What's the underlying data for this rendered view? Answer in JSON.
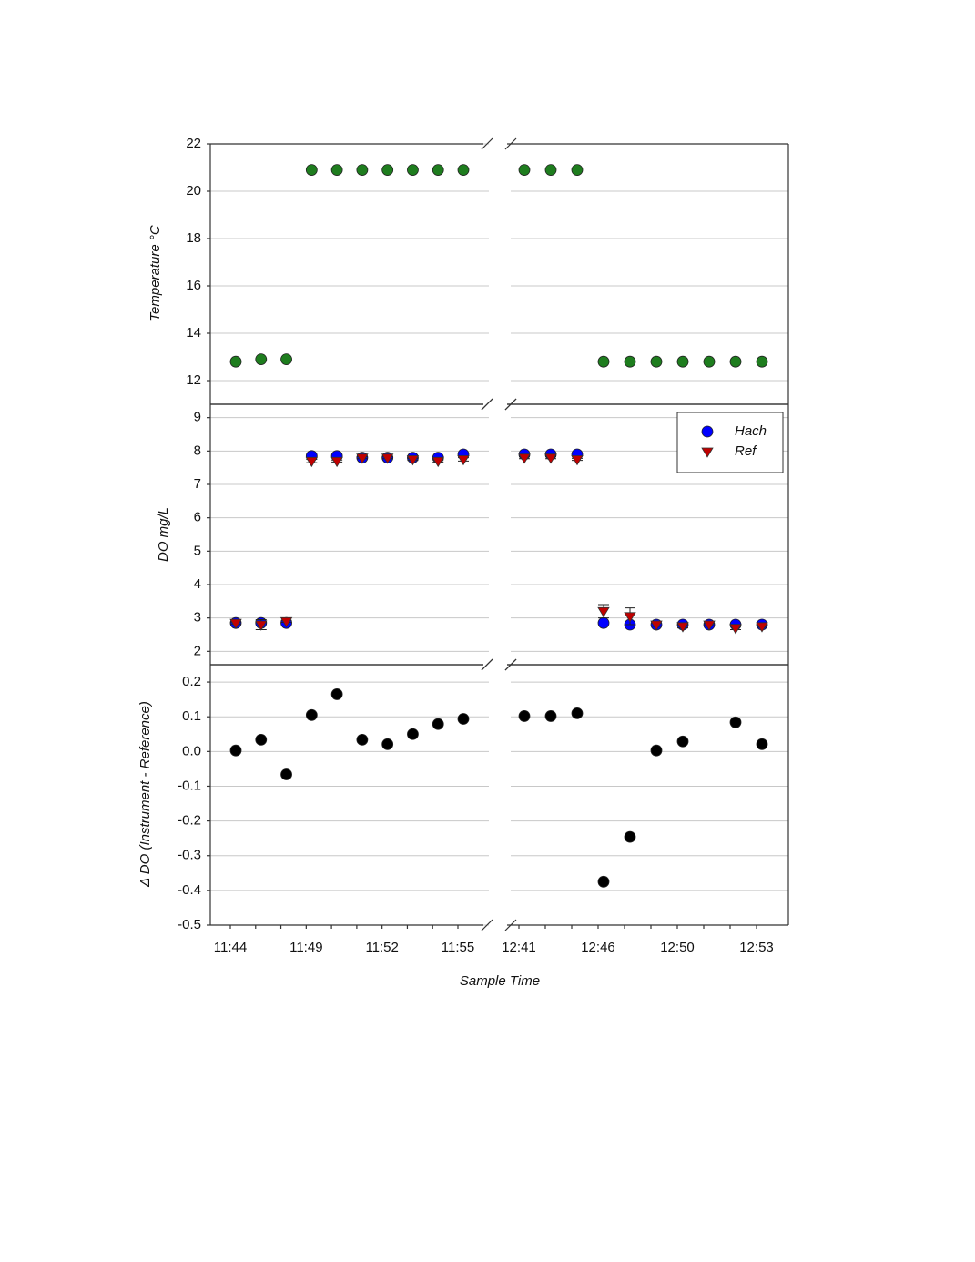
{
  "chart_data": [
    {
      "type": "scatter",
      "y_label": "Temperature °C",
      "categories": [
        "11:44",
        null,
        null,
        "11:49",
        null,
        null,
        "11:52",
        null,
        null,
        "11:55",
        "12:41",
        null,
        null,
        "12:46",
        null,
        null,
        "12:50",
        null,
        null,
        "12:53"
      ],
      "axis_break": true,
      "series": [
        {
          "name": "Temperature",
          "color": "#1e7d1e",
          "marker": "circle",
          "values": [
            12.8,
            12.9,
            12.9,
            20.9,
            20.9,
            20.9,
            20.9,
            20.9,
            20.9,
            20.9,
            20.9,
            20.9,
            20.9,
            12.8,
            12.8,
            12.8,
            12.8,
            12.8,
            12.8,
            12.8
          ]
        }
      ],
      "ylim": [
        11,
        22
      ],
      "yticks": [
        12,
        14,
        16,
        18,
        20,
        22
      ],
      "grid": true
    },
    {
      "type": "scatter",
      "y_label": "DO mg/L",
      "categories": [
        "11:44",
        null,
        null,
        "11:49",
        null,
        null,
        "11:52",
        null,
        null,
        "11:55",
        "12:41",
        null,
        null,
        "12:46",
        null,
        null,
        "12:50",
        null,
        null,
        "12:53"
      ],
      "axis_break": true,
      "series": [
        {
          "name": "Hach",
          "color": "#0000ff",
          "marker": "circle",
          "values": [
            2.85,
            2.85,
            2.85,
            7.85,
            7.85,
            7.8,
            7.8,
            7.8,
            7.8,
            7.9,
            7.9,
            7.9,
            7.9,
            2.85,
            2.8,
            2.8,
            2.8,
            2.8,
            2.8,
            2.8
          ]
        },
        {
          "name": "Ref",
          "color": "#c00000",
          "marker": "triangle-down",
          "values": [
            2.85,
            2.8,
            2.9,
            7.7,
            7.7,
            7.8,
            7.8,
            7.75,
            7.7,
            7.75,
            7.8,
            7.8,
            7.75,
            3.2,
            3.05,
            2.8,
            2.75,
            2.8,
            2.7,
            2.75
          ],
          "errors": [
            0.03,
            0.15,
            0.03,
            0.05,
            0.03,
            0.03,
            0.03,
            0.03,
            0.03,
            0.05,
            0.03,
            0.03,
            0.03,
            0.2,
            0.25,
            0.05,
            0.05,
            0.03,
            0.05,
            0.03
          ]
        }
      ],
      "legend": "upper right",
      "ylim": [
        1.6,
        9.4
      ],
      "yticks": [
        2,
        3,
        4,
        5,
        6,
        7,
        8,
        9
      ],
      "grid": true
    },
    {
      "type": "scatter",
      "y_label": "Δ DO (Instrument - Reference)",
      "x_label": "Sample Time",
      "categories": [
        "11:44",
        null,
        null,
        "11:49",
        null,
        null,
        "11:52",
        null,
        null,
        "11:55",
        "12:41",
        null,
        null,
        "12:46",
        null,
        null,
        "12:50",
        null,
        null,
        "12:53"
      ],
      "axis_break": true,
      "series": [
        {
          "name": "Δ DO",
          "color": "#000000",
          "marker": "circle",
          "values": [
            0.003,
            0.034,
            -0.066,
            0.105,
            0.165,
            0.034,
            0.021,
            0.05,
            0.079,
            0.094,
            0.102,
            0.102,
            0.11,
            -0.375,
            -0.246,
            0.003,
            0.029,
            null,
            0.084,
            0.021
          ]
        }
      ],
      "ylim": [
        -0.5,
        0.25
      ],
      "yticks": [
        -0.5,
        -0.4,
        -0.3,
        -0.2,
        -0.1,
        {
          "value": 0,
          "label": "0.0"
        },
        0.1,
        0.2
      ],
      "grid": true
    }
  ]
}
